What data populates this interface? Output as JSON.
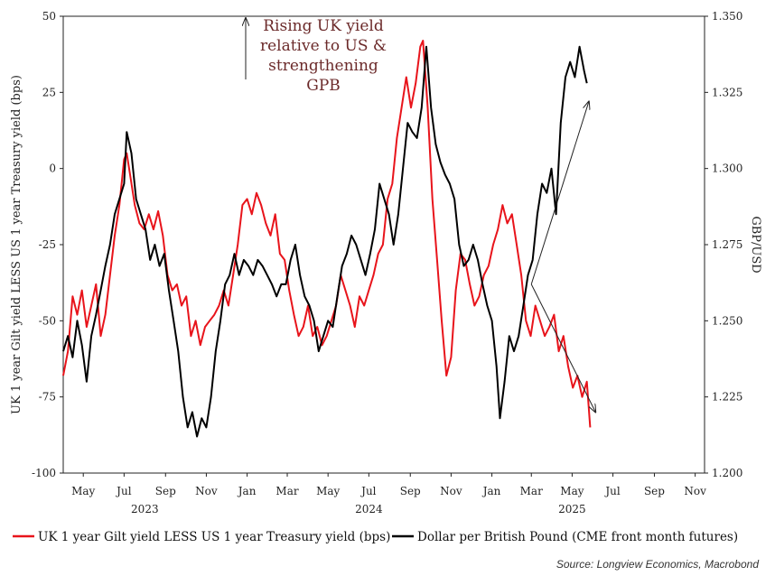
{
  "chart_data": {
    "type": "line",
    "title": "",
    "annotation": [
      "Rising UK yield",
      "relative to US &",
      "strengthening",
      "GPB"
    ],
    "ylabel_left": "UK 1 year Gilt yield LESS US 1 year Treasury yield (bps)",
    "ylabel_right": "GBP/USD",
    "yleft_lim": [
      -100,
      50
    ],
    "yleft_ticks": [
      "50",
      "25",
      "0",
      "-25",
      "-50",
      "-75",
      "-100"
    ],
    "yright_lim": [
      1.2,
      1.35
    ],
    "yright_ticks": [
      "1.350",
      "1.325",
      "1.300",
      "1.275",
      "1.250",
      "1.225",
      "1.200"
    ],
    "x_range": [
      "2023-04-01",
      "2025-11-15"
    ],
    "x_months": [
      {
        "label": "May",
        "date": "2023-05-01"
      },
      {
        "label": "Jul",
        "date": "2023-07-01"
      },
      {
        "label": "Sep",
        "date": "2023-09-01"
      },
      {
        "label": "Nov",
        "date": "2023-11-01"
      },
      {
        "label": "Jan",
        "date": "2024-01-01"
      },
      {
        "label": "Mar",
        "date": "2024-03-01"
      },
      {
        "label": "May",
        "date": "2024-05-01"
      },
      {
        "label": "Jul",
        "date": "2024-07-01"
      },
      {
        "label": "Sep",
        "date": "2024-09-01"
      },
      {
        "label": "Nov",
        "date": "2024-11-01"
      },
      {
        "label": "Jan",
        "date": "2025-01-01"
      },
      {
        "label": "Mar",
        "date": "2025-03-01"
      },
      {
        "label": "May",
        "date": "2025-05-01"
      },
      {
        "label": "Jul",
        "date": "2025-07-01"
      },
      {
        "label": "Sep",
        "date": "2025-09-01"
      },
      {
        "label": "Nov",
        "date": "2025-11-01"
      }
    ],
    "x_years": [
      {
        "label": "2023",
        "date": "2023-08-01"
      },
      {
        "label": "2024",
        "date": "2024-07-01"
      },
      {
        "label": "2025",
        "date": "2025-05-01"
      }
    ],
    "grid": false,
    "legend_position": "bottom",
    "series": [
      {
        "name": "UK 1 year Gilt yield LESS US 1 year Treasury yield (bps)",
        "axis": "left",
        "color": "#e8141b",
        "points": [
          [
            "2023-04-01",
            -68
          ],
          [
            "2023-04-08",
            -60
          ],
          [
            "2023-04-15",
            -42
          ],
          [
            "2023-04-22",
            -48
          ],
          [
            "2023-04-29",
            -40
          ],
          [
            "2023-05-06",
            -52
          ],
          [
            "2023-05-13",
            -45
          ],
          [
            "2023-05-20",
            -38
          ],
          [
            "2023-05-27",
            -55
          ],
          [
            "2023-06-03",
            -48
          ],
          [
            "2023-06-10",
            -35
          ],
          [
            "2023-06-17",
            -22
          ],
          [
            "2023-06-24",
            -12
          ],
          [
            "2023-07-01",
            3
          ],
          [
            "2023-07-05",
            5
          ],
          [
            "2023-07-10",
            -2
          ],
          [
            "2023-07-17",
            -12
          ],
          [
            "2023-07-24",
            -18
          ],
          [
            "2023-07-31",
            -20
          ],
          [
            "2023-08-07",
            -15
          ],
          [
            "2023-08-14",
            -20
          ],
          [
            "2023-08-21",
            -14
          ],
          [
            "2023-08-28",
            -22
          ],
          [
            "2023-09-04",
            -35
          ],
          [
            "2023-09-11",
            -40
          ],
          [
            "2023-09-18",
            -38
          ],
          [
            "2023-09-25",
            -45
          ],
          [
            "2023-10-02",
            -42
          ],
          [
            "2023-10-09",
            -55
          ],
          [
            "2023-10-16",
            -50
          ],
          [
            "2023-10-23",
            -58
          ],
          [
            "2023-10-30",
            -52
          ],
          [
            "2023-11-06",
            -50
          ],
          [
            "2023-11-13",
            -48
          ],
          [
            "2023-11-20",
            -45
          ],
          [
            "2023-11-27",
            -40
          ],
          [
            "2023-12-04",
            -45
          ],
          [
            "2023-12-11",
            -35
          ],
          [
            "2023-12-18",
            -25
          ],
          [
            "2023-12-25",
            -12
          ],
          [
            "2024-01-01",
            -10
          ],
          [
            "2024-01-08",
            -15
          ],
          [
            "2024-01-15",
            -8
          ],
          [
            "2024-01-22",
            -12
          ],
          [
            "2024-01-29",
            -18
          ],
          [
            "2024-02-05",
            -22
          ],
          [
            "2024-02-12",
            -15
          ],
          [
            "2024-02-19",
            -28
          ],
          [
            "2024-02-26",
            -30
          ],
          [
            "2024-03-04",
            -40
          ],
          [
            "2024-03-11",
            -48
          ],
          [
            "2024-03-18",
            -55
          ],
          [
            "2024-03-25",
            -52
          ],
          [
            "2024-04-01",
            -45
          ],
          [
            "2024-04-08",
            -55
          ],
          [
            "2024-04-15",
            -52
          ],
          [
            "2024-04-22",
            -58
          ],
          [
            "2024-04-29",
            -55
          ],
          [
            "2024-05-06",
            -50
          ],
          [
            "2024-05-13",
            -45
          ],
          [
            "2024-05-20",
            -35
          ],
          [
            "2024-05-27",
            -40
          ],
          [
            "2024-06-03",
            -45
          ],
          [
            "2024-06-10",
            -52
          ],
          [
            "2024-06-17",
            -42
          ],
          [
            "2024-06-24",
            -45
          ],
          [
            "2024-07-01",
            -40
          ],
          [
            "2024-07-08",
            -35
          ],
          [
            "2024-07-15",
            -28
          ],
          [
            "2024-07-22",
            -25
          ],
          [
            "2024-07-29",
            -10
          ],
          [
            "2024-08-05",
            -5
          ],
          [
            "2024-08-12",
            10
          ],
          [
            "2024-08-19",
            20
          ],
          [
            "2024-08-26",
            30
          ],
          [
            "2024-09-02",
            20
          ],
          [
            "2024-09-09",
            28
          ],
          [
            "2024-09-16",
            40
          ],
          [
            "2024-09-20",
            42
          ],
          [
            "2024-09-27",
            20
          ],
          [
            "2024-10-04",
            -10
          ],
          [
            "2024-10-11",
            -30
          ],
          [
            "2024-10-18",
            -50
          ],
          [
            "2024-10-25",
            -68
          ],
          [
            "2024-11-01",
            -62
          ],
          [
            "2024-11-08",
            -40
          ],
          [
            "2024-11-15",
            -28
          ],
          [
            "2024-11-22",
            -30
          ],
          [
            "2024-11-29",
            -38
          ],
          [
            "2024-12-06",
            -45
          ],
          [
            "2024-12-13",
            -42
          ],
          [
            "2024-12-20",
            -35
          ],
          [
            "2024-12-27",
            -32
          ],
          [
            "2025-01-03",
            -25
          ],
          [
            "2025-01-10",
            -20
          ],
          [
            "2025-01-17",
            -12
          ],
          [
            "2025-01-24",
            -18
          ],
          [
            "2025-01-31",
            -15
          ],
          [
            "2025-02-07",
            -25
          ],
          [
            "2025-02-14",
            -35
          ],
          [
            "2025-02-21",
            -50
          ],
          [
            "2025-02-28",
            -55
          ],
          [
            "2025-03-07",
            -45
          ],
          [
            "2025-03-14",
            -50
          ],
          [
            "2025-03-21",
            -55
          ],
          [
            "2025-03-28",
            -52
          ],
          [
            "2025-04-04",
            -48
          ],
          [
            "2025-04-11",
            -60
          ],
          [
            "2025-04-18",
            -55
          ],
          [
            "2025-04-25",
            -65
          ],
          [
            "2025-05-02",
            -72
          ],
          [
            "2025-05-09",
            -68
          ],
          [
            "2025-05-16",
            -75
          ],
          [
            "2025-05-23",
            -70
          ],
          [
            "2025-05-28",
            -85
          ]
        ]
      },
      {
        "name": "Dollar per British Pound (CME front month futures)",
        "axis": "right",
        "color": "#000000",
        "points": [
          [
            "2023-04-01",
            1.24
          ],
          [
            "2023-04-08",
            1.245
          ],
          [
            "2023-04-15",
            1.238
          ],
          [
            "2023-04-22",
            1.25
          ],
          [
            "2023-04-29",
            1.242
          ],
          [
            "2023-05-06",
            1.23
          ],
          [
            "2023-05-13",
            1.245
          ],
          [
            "2023-05-20",
            1.252
          ],
          [
            "2023-05-27",
            1.26
          ],
          [
            "2023-06-03",
            1.268
          ],
          [
            "2023-06-10",
            1.275
          ],
          [
            "2023-06-17",
            1.285
          ],
          [
            "2023-06-24",
            1.29
          ],
          [
            "2023-07-01",
            1.295
          ],
          [
            "2023-07-05",
            1.312
          ],
          [
            "2023-07-12",
            1.305
          ],
          [
            "2023-07-19",
            1.29
          ],
          [
            "2023-07-26",
            1.285
          ],
          [
            "2023-08-02",
            1.28
          ],
          [
            "2023-08-09",
            1.27
          ],
          [
            "2023-08-16",
            1.275
          ],
          [
            "2023-08-23",
            1.268
          ],
          [
            "2023-08-30",
            1.272
          ],
          [
            "2023-09-06",
            1.26
          ],
          [
            "2023-09-13",
            1.25
          ],
          [
            "2023-09-20",
            1.24
          ],
          [
            "2023-09-27",
            1.225
          ],
          [
            "2023-10-04",
            1.215
          ],
          [
            "2023-10-11",
            1.22
          ],
          [
            "2023-10-18",
            1.212
          ],
          [
            "2023-10-25",
            1.218
          ],
          [
            "2023-11-01",
            1.215
          ],
          [
            "2023-11-08",
            1.225
          ],
          [
            "2023-11-15",
            1.24
          ],
          [
            "2023-11-22",
            1.25
          ],
          [
            "2023-11-29",
            1.262
          ],
          [
            "2023-12-06",
            1.265
          ],
          [
            "2023-12-13",
            1.272
          ],
          [
            "2023-12-20",
            1.265
          ],
          [
            "2023-12-27",
            1.27
          ],
          [
            "2024-01-03",
            1.268
          ],
          [
            "2024-01-10",
            1.265
          ],
          [
            "2024-01-17",
            1.27
          ],
          [
            "2024-01-24",
            1.268
          ],
          [
            "2024-01-31",
            1.265
          ],
          [
            "2024-02-07",
            1.262
          ],
          [
            "2024-02-14",
            1.258
          ],
          [
            "2024-02-21",
            1.262
          ],
          [
            "2024-02-28",
            1.262
          ],
          [
            "2024-03-06",
            1.27
          ],
          [
            "2024-03-13",
            1.275
          ],
          [
            "2024-03-20",
            1.265
          ],
          [
            "2024-03-27",
            1.258
          ],
          [
            "2024-04-03",
            1.255
          ],
          [
            "2024-04-10",
            1.25
          ],
          [
            "2024-04-17",
            1.24
          ],
          [
            "2024-04-24",
            1.245
          ],
          [
            "2024-05-01",
            1.25
          ],
          [
            "2024-05-08",
            1.248
          ],
          [
            "2024-05-15",
            1.258
          ],
          [
            "2024-05-22",
            1.268
          ],
          [
            "2024-05-29",
            1.272
          ],
          [
            "2024-06-05",
            1.278
          ],
          [
            "2024-06-12",
            1.275
          ],
          [
            "2024-06-19",
            1.27
          ],
          [
            "2024-06-26",
            1.265
          ],
          [
            "2024-07-03",
            1.272
          ],
          [
            "2024-07-10",
            1.28
          ],
          [
            "2024-07-17",
            1.295
          ],
          [
            "2024-07-24",
            1.29
          ],
          [
            "2024-07-31",
            1.285
          ],
          [
            "2024-08-07",
            1.275
          ],
          [
            "2024-08-14",
            1.285
          ],
          [
            "2024-08-21",
            1.3
          ],
          [
            "2024-08-28",
            1.315
          ],
          [
            "2024-09-04",
            1.312
          ],
          [
            "2024-09-11",
            1.31
          ],
          [
            "2024-09-18",
            1.32
          ],
          [
            "2024-09-25",
            1.34
          ],
          [
            "2024-10-02",
            1.32
          ],
          [
            "2024-10-09",
            1.308
          ],
          [
            "2024-10-16",
            1.302
          ],
          [
            "2024-10-23",
            1.298
          ],
          [
            "2024-10-30",
            1.295
          ],
          [
            "2024-11-06",
            1.29
          ],
          [
            "2024-11-13",
            1.275
          ],
          [
            "2024-11-20",
            1.268
          ],
          [
            "2024-11-27",
            1.27
          ],
          [
            "2024-12-04",
            1.275
          ],
          [
            "2024-12-11",
            1.27
          ],
          [
            "2024-12-18",
            1.262
          ],
          [
            "2024-12-25",
            1.255
          ],
          [
            "2025-01-01",
            1.25
          ],
          [
            "2025-01-08",
            1.235
          ],
          [
            "2025-01-13",
            1.218
          ],
          [
            "2025-01-20",
            1.23
          ],
          [
            "2025-01-27",
            1.245
          ],
          [
            "2025-02-03",
            1.24
          ],
          [
            "2025-02-10",
            1.245
          ],
          [
            "2025-02-17",
            1.255
          ],
          [
            "2025-02-24",
            1.265
          ],
          [
            "2025-03-03",
            1.27
          ],
          [
            "2025-03-10",
            1.285
          ],
          [
            "2025-03-17",
            1.295
          ],
          [
            "2025-03-24",
            1.292
          ],
          [
            "2025-03-31",
            1.3
          ],
          [
            "2025-04-07",
            1.285
          ],
          [
            "2025-04-14",
            1.315
          ],
          [
            "2025-04-21",
            1.33
          ],
          [
            "2025-04-28",
            1.335
          ],
          [
            "2025-05-05",
            1.33
          ],
          [
            "2025-05-12",
            1.34
          ],
          [
            "2025-05-19",
            1.332
          ],
          [
            "2025-05-23",
            1.328
          ]
        ]
      }
    ],
    "trend_arrows": [
      {
        "axis": "right",
        "from": [
          "2025-03-01",
          1.262
        ],
        "to": [
          "2025-05-26",
          1.322
        ]
      },
      {
        "axis": "left",
        "from": [
          "2025-03-01",
          -38
        ],
        "to": [
          "2025-06-05",
          -80
        ]
      }
    ],
    "legend": [
      {
        "label": "UK 1 year Gilt yield LESS US 1 year Treasury yield (bps)",
        "color": "#e8141b"
      },
      {
        "label": "Dollar per British Pound (CME front month futures)",
        "color": "#000000"
      }
    ],
    "source": "Source: Longview Economics, Macrobond"
  }
}
